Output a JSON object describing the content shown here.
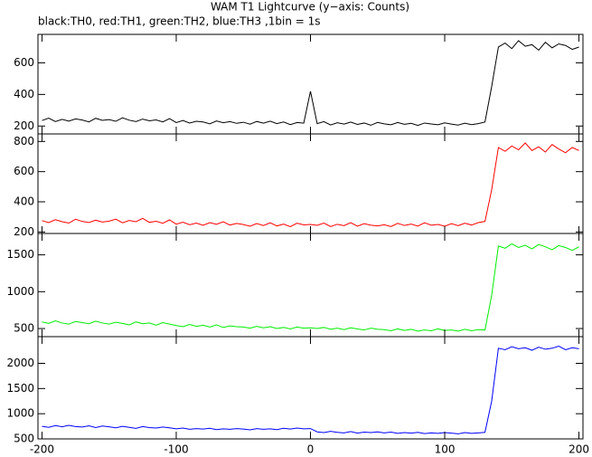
{
  "chart_data": [
    {
      "type": "line",
      "title": "WAM T1 Lightcurve (y−axis: Counts)",
      "subtitle": "black:TH0, red:TH1, green:TH2, blue:TH3 ,1bin = 1s",
      "color": "#000000",
      "x": [
        -200,
        -195,
        -190,
        -185,
        -180,
        -175,
        -170,
        -165,
        -160,
        -155,
        -150,
        -145,
        -140,
        -135,
        -130,
        -125,
        -120,
        -115,
        -110,
        -105,
        -100,
        -95,
        -90,
        -85,
        -80,
        -75,
        -70,
        -65,
        -60,
        -55,
        -50,
        -45,
        -40,
        -35,
        -30,
        -25,
        -20,
        -15,
        -10,
        -5,
        0,
        5,
        10,
        15,
        20,
        25,
        30,
        35,
        40,
        45,
        50,
        55,
        60,
        65,
        70,
        75,
        80,
        85,
        90,
        95,
        100,
        105,
        110,
        115,
        120,
        125,
        130,
        135,
        140,
        145,
        150,
        155,
        160,
        165,
        170,
        175,
        180,
        185,
        190,
        195,
        200
      ],
      "values": [
        235,
        250,
        228,
        242,
        231,
        245,
        238,
        226,
        249,
        236,
        241,
        230,
        252,
        237,
        228,
        244,
        233,
        239,
        226,
        247,
        222,
        235,
        219,
        230,
        226,
        214,
        232,
        221,
        228,
        217,
        224,
        212,
        229,
        218,
        231,
        215,
        226,
        209,
        222,
        218,
        420,
        215,
        228,
        207,
        221,
        212,
        225,
        210,
        219,
        205,
        223,
        214,
        208,
        222,
        211,
        217,
        204,
        219,
        213,
        208,
        220,
        212,
        206,
        218,
        209,
        215,
        225,
        450,
        700,
        725,
        690,
        740,
        705,
        715,
        680,
        730,
        695,
        720,
        710,
        685,
        700
      ],
      "xlim": [
        -203,
        203
      ],
      "xticks": [
        -200,
        -100,
        0,
        100,
        200
      ],
      "ylim": [
        150,
        780
      ],
      "yticks": [
        200,
        400,
        600
      ]
    },
    {
      "type": "line",
      "color": "#ff0000",
      "x": [
        -200,
        -195,
        -190,
        -185,
        -180,
        -175,
        -170,
        -165,
        -160,
        -155,
        -150,
        -145,
        -140,
        -135,
        -130,
        -125,
        -120,
        -115,
        -110,
        -105,
        -100,
        -95,
        -90,
        -85,
        -80,
        -75,
        -70,
        -65,
        -60,
        -55,
        -50,
        -45,
        -40,
        -35,
        -30,
        -25,
        -20,
        -15,
        -10,
        -5,
        0,
        5,
        10,
        15,
        20,
        25,
        30,
        35,
        40,
        45,
        50,
        55,
        60,
        65,
        70,
        75,
        80,
        85,
        90,
        95,
        100,
        105,
        110,
        115,
        120,
        125,
        130,
        135,
        140,
        145,
        150,
        155,
        160,
        165,
        170,
        175,
        180,
        185,
        190,
        195,
        200
      ],
      "values": [
        275,
        262,
        281,
        268,
        259,
        284,
        270,
        263,
        278,
        266,
        272,
        285,
        261,
        276,
        268,
        290,
        264,
        271,
        258,
        280,
        252,
        265,
        248,
        259,
        244,
        262,
        251,
        268,
        246,
        257,
        249,
        238,
        256,
        243,
        261,
        240,
        252,
        235,
        258,
        247,
        250,
        244,
        259,
        236,
        251,
        242,
        262,
        238,
        255,
        245,
        240,
        248,
        236,
        257,
        243,
        252,
        239,
        261,
        245,
        250,
        238,
        255,
        242,
        258,
        246,
        262,
        270,
        480,
        760,
        735,
        770,
        745,
        790,
        740,
        765,
        730,
        780,
        750,
        725,
        760,
        740
      ],
      "xlim": [
        -203,
        203
      ],
      "xticks": [
        -200,
        -100,
        0,
        100,
        200
      ],
      "ylim": [
        190,
        850
      ],
      "yticks": [
        200,
        400,
        600,
        800
      ]
    },
    {
      "type": "line",
      "color": "#00ee00",
      "x": [
        -200,
        -195,
        -190,
        -185,
        -180,
        -175,
        -170,
        -165,
        -160,
        -155,
        -150,
        -145,
        -140,
        -135,
        -130,
        -125,
        -120,
        -115,
        -110,
        -105,
        -100,
        -95,
        -90,
        -85,
        -80,
        -75,
        -70,
        -65,
        -60,
        -55,
        -50,
        -45,
        -40,
        -35,
        -30,
        -25,
        -20,
        -15,
        -10,
        -5,
        0,
        5,
        10,
        15,
        20,
        25,
        30,
        35,
        40,
        45,
        50,
        55,
        60,
        65,
        70,
        75,
        80,
        85,
        90,
        95,
        100,
        105,
        110,
        115,
        120,
        125,
        130,
        135,
        140,
        145,
        150,
        155,
        160,
        165,
        170,
        175,
        180,
        185,
        190,
        195,
        200
      ],
      "values": [
        590,
        570,
        605,
        575,
        560,
        595,
        580,
        565,
        600,
        575,
        560,
        585,
        570,
        550,
        590,
        565,
        575,
        545,
        580,
        560,
        540,
        525,
        555,
        530,
        545,
        520,
        550,
        515,
        535,
        525,
        520,
        505,
        530,
        510,
        525,
        500,
        515,
        495,
        520,
        505,
        510,
        500,
        515,
        490,
        505,
        485,
        510,
        495,
        480,
        505,
        490,
        485,
        470,
        495,
        475,
        490,
        465,
        480,
        470,
        495,
        475,
        480,
        465,
        490,
        470,
        485,
        480,
        950,
        1620,
        1590,
        1650,
        1600,
        1630,
        1580,
        1640,
        1610,
        1570,
        1625,
        1600,
        1560,
        1610
      ],
      "xlim": [
        -203,
        203
      ],
      "xticks": [
        -200,
        -100,
        0,
        100,
        200
      ],
      "ylim": [
        390,
        1790
      ],
      "yticks": [
        500,
        1000,
        1500
      ]
    },
    {
      "type": "line",
      "color": "#0000ff",
      "x": [
        -200,
        -195,
        -190,
        -185,
        -180,
        -175,
        -170,
        -165,
        -160,
        -155,
        -150,
        -145,
        -140,
        -135,
        -130,
        -125,
        -120,
        -115,
        -110,
        -105,
        -100,
        -95,
        -90,
        -85,
        -80,
        -75,
        -70,
        -65,
        -60,
        -55,
        -50,
        -45,
        -40,
        -35,
        -30,
        -25,
        -20,
        -15,
        -10,
        -5,
        0,
        5,
        10,
        15,
        20,
        25,
        30,
        35,
        40,
        45,
        50,
        55,
        60,
        65,
        70,
        75,
        80,
        85,
        90,
        95,
        100,
        105,
        110,
        115,
        120,
        125,
        130,
        135,
        140,
        145,
        150,
        155,
        160,
        165,
        170,
        175,
        180,
        185,
        190,
        195,
        200
      ],
      "values": [
        750,
        730,
        765,
        740,
        770,
        745,
        735,
        760,
        725,
        755,
        740,
        720,
        750,
        730,
        710,
        745,
        725,
        715,
        735,
        720,
        700,
        715,
        690,
        705,
        695,
        710,
        685,
        700,
        690,
        705,
        695,
        680,
        705,
        690,
        700,
        685,
        710,
        695,
        715,
        700,
        705,
        640,
        625,
        650,
        630,
        620,
        645,
        615,
        635,
        625,
        640,
        620,
        635,
        610,
        625,
        615,
        630,
        605,
        620,
        610,
        625,
        615,
        600,
        625,
        610,
        620,
        630,
        1250,
        2300,
        2270,
        2330,
        2290,
        2310,
        2260,
        2320,
        2280,
        2300,
        2340,
        2270,
        2310,
        2290
      ],
      "xlim": [
        -203,
        203
      ],
      "xticks": [
        -200,
        -100,
        0,
        100,
        200
      ],
      "ylim": [
        500,
        2530
      ],
      "yticks": [
        500,
        1000,
        1500,
        2000
      ]
    }
  ]
}
